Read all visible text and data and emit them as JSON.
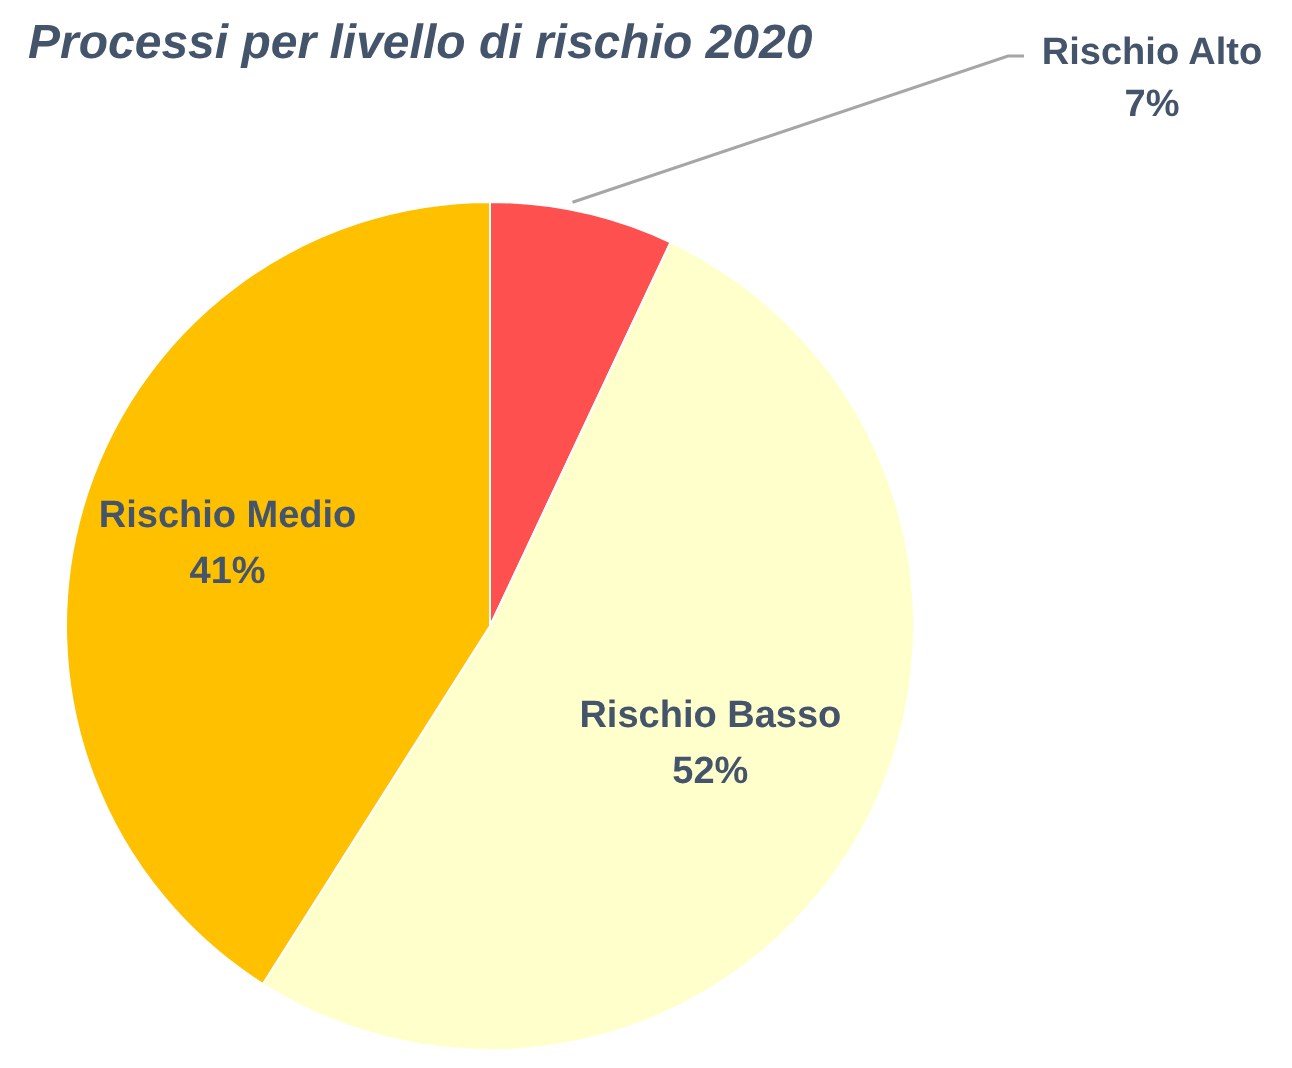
{
  "chart_data": {
    "type": "pie",
    "title": "Processi per livello di rischio 2020",
    "categories": [
      "Rischio Alto",
      "Rischio Basso",
      "Rischio Medio"
    ],
    "values": [
      7,
      52,
      41
    ],
    "colors": [
      "#ff5050",
      "#ffffcc",
      "#ffc000"
    ],
    "value_labels": [
      "7%",
      "52%",
      "41%"
    ]
  }
}
